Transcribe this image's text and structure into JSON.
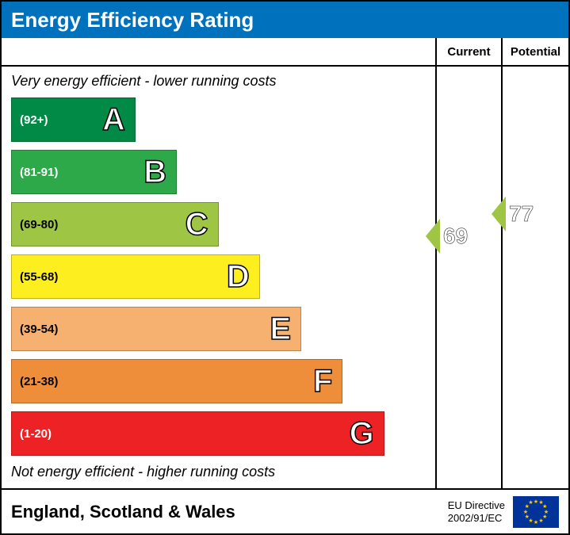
{
  "title": "Energy Efficiency Rating",
  "title_bg": "#0071bc",
  "title_color": "#ffffff",
  "columns": {
    "current_label": "Current",
    "potential_label": "Potential"
  },
  "captions": {
    "top": "Very energy efficient - lower running costs",
    "bottom": "Not energy efficient - higher running costs"
  },
  "bands": [
    {
      "letter": "A",
      "range": "(92+)",
      "color": "#008a46",
      "width_pct": 30,
      "text_color": "#ffffff"
    },
    {
      "letter": "B",
      "range": "(81-91)",
      "color": "#2ea949",
      "width_pct": 40,
      "text_color": "#ffffff"
    },
    {
      "letter": "C",
      "range": "(69-80)",
      "color": "#9ec544",
      "width_pct": 50,
      "text_color": "#000000"
    },
    {
      "letter": "D",
      "range": "(55-68)",
      "color": "#fdee20",
      "width_pct": 60,
      "text_color": "#000000"
    },
    {
      "letter": "E",
      "range": "(39-54)",
      "color": "#f6b171",
      "width_pct": 70,
      "text_color": "#000000"
    },
    {
      "letter": "F",
      "range": "(21-38)",
      "color": "#ef8e3a",
      "width_pct": 80,
      "text_color": "#000000"
    },
    {
      "letter": "G",
      "range": "(1-20)",
      "color": "#ed2224",
      "width_pct": 90,
      "text_color": "#ffffff"
    }
  ],
  "band_height": 56,
  "band_gap": 10,
  "ratings": {
    "current": {
      "value": 69,
      "band_letter": "C",
      "color": "#9ec544"
    },
    "potential": {
      "value": 77,
      "band_letter": "C",
      "color": "#9ec544"
    }
  },
  "footer": {
    "region": "England, Scotland & Wales",
    "directive_line1": "EU Directive",
    "directive_line2": "2002/91/EC"
  },
  "eu_flag": {
    "bg": "#003399",
    "star_color": "#ffcc00"
  }
}
